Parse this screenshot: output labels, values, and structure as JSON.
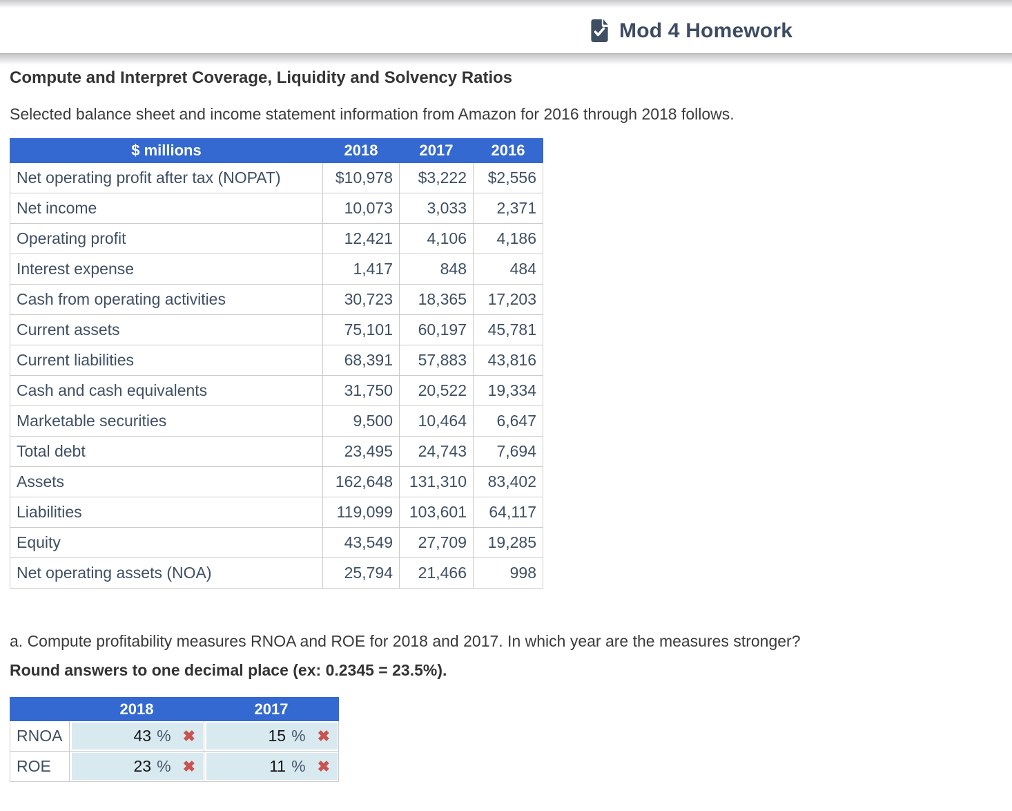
{
  "header": {
    "title": "Mod 4 Homework",
    "icon": "file-check-icon"
  },
  "colors": {
    "header_blue": "#3469d1",
    "answer_cell_bg": "#d8e9f0",
    "incorrect_red": "#c9534f",
    "table_text_slate": "#3f4f63",
    "title_slate": "#3d4c63"
  },
  "page": {
    "heading": "Compute and Interpret Coverage, Liquidity and Solvency Ratios",
    "intro": "Selected balance sheet and income statement information from Amazon for 2016 through 2018 follows.",
    "question_a": "a. Compute profitability measures RNOA and ROE for 2018 and 2017. In which year are the measures stronger?",
    "question_a_instruction": "Round answers to one decimal place (ex: 0.2345 = 23.5%)."
  },
  "main_table": {
    "header": [
      "$ millions",
      "2018",
      "2017",
      "2016"
    ],
    "rows": [
      {
        "label": "Net operating profit after tax (NOPAT)",
        "v2018": "$10,978",
        "v2017": "$3,222",
        "v2016": "$2,556"
      },
      {
        "label": "Net income",
        "v2018": "10,073",
        "v2017": "3,033",
        "v2016": "2,371"
      },
      {
        "label": "Operating profit",
        "v2018": "12,421",
        "v2017": "4,106",
        "v2016": "4,186"
      },
      {
        "label": "Interest expense",
        "v2018": "1,417",
        "v2017": "848",
        "v2016": "484"
      },
      {
        "label": "Cash from operating activities",
        "v2018": "30,723",
        "v2017": "18,365",
        "v2016": "17,203"
      },
      {
        "label": "Current assets",
        "v2018": "75,101",
        "v2017": "60,197",
        "v2016": "45,781"
      },
      {
        "label": "Current liabilities",
        "v2018": "68,391",
        "v2017": "57,883",
        "v2016": "43,816"
      },
      {
        "label": "Cash and cash equivalents",
        "v2018": "31,750",
        "v2017": "20,522",
        "v2016": "19,334"
      },
      {
        "label": "Marketable securities",
        "v2018": "9,500",
        "v2017": "10,464",
        "v2016": "6,647"
      },
      {
        "label": "Total debt",
        "v2018": "23,495",
        "v2017": "24,743",
        "v2016": "7,694"
      },
      {
        "label": "Assets",
        "v2018": "162,648",
        "v2017": "131,310",
        "v2016": "83,402"
      },
      {
        "label": "Liabilities",
        "v2018": "119,099",
        "v2017": "103,601",
        "v2016": "64,117"
      },
      {
        "label": "Equity",
        "v2018": "43,549",
        "v2017": "27,709",
        "v2016": "19,285"
      },
      {
        "label": "Net operating assets (NOA)",
        "v2018": "25,794",
        "v2017": "21,466",
        "v2016": "998"
      }
    ]
  },
  "answer_table": {
    "header": [
      "",
      "2018",
      "2017"
    ],
    "incorrect_glyph": "✖",
    "rows": [
      {
        "label": "RNOA",
        "answers": [
          {
            "value": "43",
            "suffix": "%",
            "mark": "incorrect"
          },
          {
            "value": "15",
            "suffix": "%",
            "mark": "incorrect"
          }
        ]
      },
      {
        "label": "ROE",
        "answers": [
          {
            "value": "23",
            "suffix": "%",
            "mark": "incorrect"
          },
          {
            "value": "11",
            "suffix": "%",
            "mark": "incorrect"
          }
        ]
      }
    ]
  }
}
